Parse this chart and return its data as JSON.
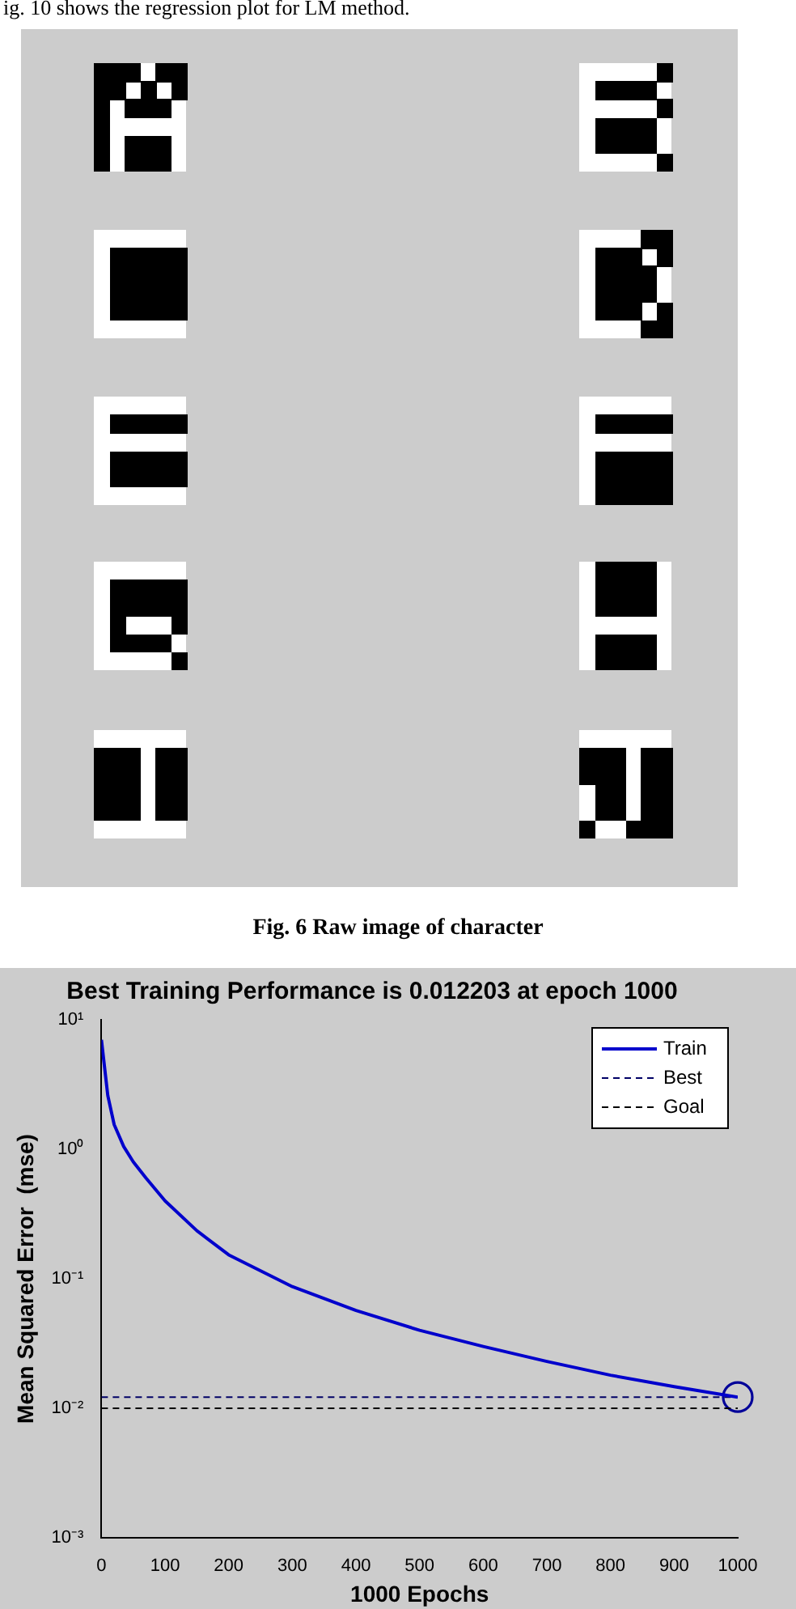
{
  "chart_data": {
    "type": "line",
    "title": "Best Training Performance is 0.012203 at epoch 1000",
    "xlabel": "1000 Epochs",
    "ylabel": "Mean Squared Error  (mse)",
    "annotations": [
      "ig. 10 shows the regression plot for LM method.",
      "Fig. 6 Raw image of character"
    ],
    "series": [
      {
        "name": "Train",
        "color": "#0000cc",
        "line_style": "solid",
        "marker": "none",
        "x": [
          0,
          10,
          20,
          35,
          50,
          70,
          100,
          150,
          200,
          300,
          400,
          500,
          600,
          700,
          800,
          900,
          1000
        ],
        "values": [
          7,
          2.6,
          1.55,
          1.05,
          0.8,
          0.6,
          0.4,
          0.235,
          0.153,
          0.087,
          0.057,
          0.04,
          0.03,
          0.023,
          0.018,
          0.0147,
          0.012203
        ]
      },
      {
        "name": "Best",
        "color": "#000066",
        "line_style": "dashed",
        "marker": "none",
        "x": [
          0,
          1000
        ],
        "values": [
          0.012203,
          0.012203
        ]
      },
      {
        "name": "Goal",
        "color": "#000000",
        "line_style": "dashed",
        "marker": "none",
        "x": [
          0,
          1000
        ],
        "values": [
          0.01,
          0.01
        ]
      },
      {
        "type": "scatter",
        "color": "#000099",
        "marker": "circle",
        "x": [
          1000
        ],
        "values": [
          0.012203
        ]
      }
    ],
    "log": "y",
    "legend": "top right",
    "xlim": [
      0,
      1000
    ],
    "xticks": [
      0,
      100,
      200,
      300,
      400,
      500,
      600,
      700,
      800,
      900,
      1000
    ],
    "ylim": [
      0.001,
      10
    ],
    "yticks": [
      {
        "value": 0.001,
        "label": "10⁻³"
      },
      {
        "value": 0.01,
        "label": "10⁻²"
      },
      {
        "value": 0.1,
        "label": "10⁻¹"
      },
      {
        "value": 1,
        "label": "10⁰"
      },
      {
        "value": 10,
        "label": "10¹"
      }
    ]
  }
}
